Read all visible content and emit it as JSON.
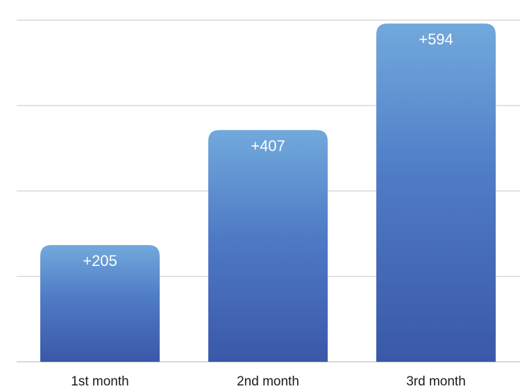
{
  "chart_data": {
    "type": "bar",
    "categories": [
      "1st month",
      "2nd month",
      "3rd month"
    ],
    "values": [
      205,
      407,
      594
    ],
    "data_labels": [
      "+205",
      "+407",
      "+594"
    ],
    "ylim": [
      0,
      600
    ],
    "grid": true,
    "legend": "none",
    "colors": {
      "bar_top": "#72a9dc",
      "bar_bottom": "#3a58a8",
      "data_label": "#ffffff",
      "tick_label": "#1a1a1a",
      "grid": "#d9d9d9"
    }
  }
}
